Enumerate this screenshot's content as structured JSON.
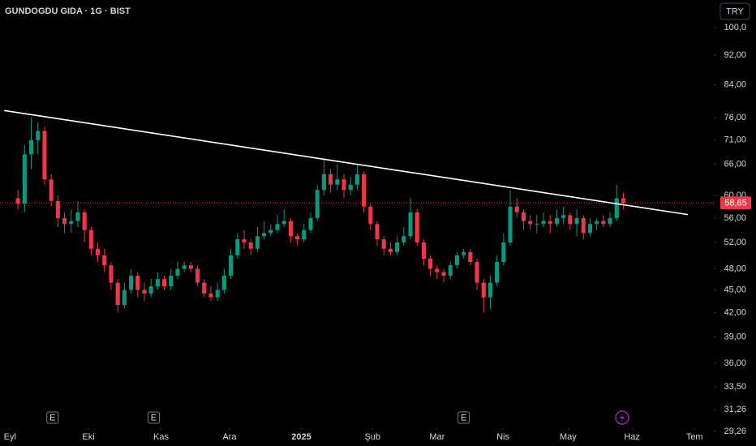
{
  "chart_data": {
    "type": "candlestick",
    "title": "GUNDOGDU GIDA · 1G · BIST",
    "currency": "TRY",
    "log_scale": true,
    "up_color": "#089981",
    "down_color": "#f23645",
    "grid": false,
    "x": [
      0,
      1,
      2,
      3,
      4,
      5,
      6,
      7,
      8,
      9,
      10,
      11,
      12,
      13,
      14,
      15,
      16,
      17,
      18,
      19,
      20,
      21,
      22,
      23,
      24,
      25,
      26,
      27,
      28,
      29,
      30,
      31,
      32,
      33,
      34,
      35,
      36,
      37,
      38,
      39,
      40,
      41,
      42,
      43,
      44,
      45,
      46,
      47,
      48,
      49,
      50,
      51,
      52,
      53,
      54,
      55,
      56,
      57,
      58,
      59,
      60,
      61,
      62,
      63,
      64,
      65,
      66,
      67,
      68,
      69,
      70,
      71,
      72,
      73,
      74,
      75,
      76,
      77,
      78,
      79,
      80,
      81,
      82,
      83,
      84,
      85,
      86,
      87,
      88,
      89,
      90,
      91
    ],
    "open": [
      59.5,
      58.5,
      68,
      71,
      73,
      63,
      59,
      56,
      55,
      55.5,
      57,
      54,
      51,
      50,
      48.5,
      46,
      43,
      45,
      47,
      45,
      44.5,
      45.5,
      46.5,
      45.5,
      47,
      48,
      48.5,
      48,
      46,
      44.5,
      44,
      45,
      47,
      50,
      52.5,
      52,
      51,
      53,
      53.5,
      54,
      55,
      55.5,
      53,
      52.5,
      54,
      56,
      61,
      64,
      62,
      63,
      61,
      62,
      64,
      58,
      55,
      52.5,
      51,
      50.5,
      52,
      53,
      57,
      52,
      49.5,
      48,
      47.5,
      47,
      48.5,
      50,
      50.5,
      49,
      46,
      44,
      46,
      49,
      52,
      58,
      57,
      55.5,
      55,
      55,
      55.5,
      55,
      56,
      56.5,
      55,
      56,
      53.5,
      55,
      55.5,
      55,
      56,
      59.5
    ],
    "high": [
      61,
      70,
      76,
      75,
      74,
      64,
      60,
      57,
      57.5,
      59,
      57.5,
      54.5,
      52,
      51,
      49,
      46.5,
      46,
      48,
      47.5,
      46,
      46.5,
      47.5,
      47,
      48,
      49,
      49,
      49,
      48.5,
      46.5,
      45.5,
      46,
      48,
      51,
      53.5,
      54,
      52.5,
      54.5,
      55.5,
      55,
      56.5,
      57.5,
      56,
      53.5,
      55,
      57,
      62,
      67,
      65,
      66,
      64,
      63.5,
      66,
      64.5,
      58.5,
      55.5,
      53,
      52,
      53,
      54.5,
      59.5,
      57.5,
      52.5,
      50,
      48.5,
      48,
      49,
      50.5,
      51,
      51,
      49.5,
      46.5,
      47,
      50,
      53.5,
      61,
      59.5,
      57.5,
      56.5,
      56.5,
      57,
      56.5,
      57.5,
      58,
      57,
      57.5,
      56.5,
      56,
      56,
      56.5,
      57,
      62,
      60.5
    ],
    "low": [
      57.5,
      57,
      65,
      68,
      62,
      58,
      54.5,
      53.5,
      53.5,
      54.5,
      52,
      50,
      49,
      47.5,
      45,
      42,
      42.5,
      44.5,
      44,
      43.5,
      44,
      45,
      45,
      45,
      46.5,
      47.5,
      47.5,
      45.5,
      44,
      43.5,
      43.5,
      44.5,
      46.5,
      49.5,
      51,
      50,
      50.5,
      52.5,
      53,
      53.5,
      54.5,
      52,
      51.5,
      52,
      53.5,
      55.5,
      60,
      60.5,
      61,
      59.5,
      60,
      61,
      57,
      54,
      51.5,
      50,
      50,
      50,
      51.5,
      52.5,
      51.5,
      48.5,
      47,
      46.5,
      46,
      46.5,
      48,
      49.5,
      48.5,
      45,
      42,
      42.5,
      45.5,
      48.5,
      51.5,
      56,
      54,
      54,
      53.5,
      54.5,
      53.5,
      54.5,
      55,
      54,
      53,
      52.5,
      53,
      54,
      54.5,
      54.5,
      55.5,
      57.5
    ],
    "close": [
      58.5,
      68,
      71,
      73,
      63,
      59,
      56,
      55,
      55.5,
      57,
      54,
      51,
      50,
      48.5,
      46,
      43,
      45,
      47,
      45,
      44.5,
      45.5,
      46.5,
      45.5,
      47,
      48,
      48.5,
      48,
      46,
      44.5,
      44,
      45,
      47,
      50,
      52.5,
      52,
      51,
      53,
      53.5,
      54,
      55,
      55.5,
      53,
      52.5,
      54,
      56,
      61,
      64,
      62,
      63,
      61,
      62,
      64,
      58,
      55,
      52.5,
      51,
      50.5,
      52,
      53,
      57,
      52,
      49.5,
      48,
      47.5,
      47,
      48.5,
      50,
      50.5,
      49,
      46,
      44,
      46,
      49,
      52,
      58,
      57,
      55.5,
      55,
      55,
      55.5,
      55,
      56,
      56.5,
      55,
      56,
      53.5,
      55,
      55.5,
      55,
      56,
      59.5,
      58.65
    ],
    "last_price": {
      "value": 58.65,
      "label": "58,65"
    },
    "trendline": {
      "x": [
        -2.07,
        100.7
      ],
      "y": [
        77.7,
        56.6
      ]
    },
    "events": [
      {
        "x": 5.2,
        "label": "E"
      },
      {
        "x": 20.4,
        "label": "E"
      },
      {
        "x": 67,
        "label": "E"
      }
    ],
    "xlim": [
      -2.7,
      104.6
    ],
    "xticks": [
      {
        "value": -1.2,
        "label": "Eyl"
      },
      {
        "value": 10.6,
        "label": "Eki"
      },
      {
        "value": 21.5,
        "label": "Kas"
      },
      {
        "value": 31.8,
        "label": "Ara"
      },
      {
        "value": 42.6,
        "label": "2025"
      },
      {
        "value": 53.3,
        "label": "Şub"
      },
      {
        "value": 63.0,
        "label": "Mar"
      },
      {
        "value": 72.9,
        "label": "Nis"
      },
      {
        "value": 82.7,
        "label": "May"
      },
      {
        "value": 92.3,
        "label": "Haz"
      },
      {
        "value": 101.7,
        "label": "Tem"
      }
    ],
    "ylim": [
      27.98,
      108.78
    ],
    "yticks": [
      {
        "value": 100,
        "label": "100,0"
      },
      {
        "value": 92,
        "label": "92,00"
      },
      {
        "value": 84,
        "label": "84,00"
      },
      {
        "value": 76,
        "label": "76,00"
      },
      {
        "value": 71,
        "label": "71,00"
      },
      {
        "value": 66,
        "label": "66,00"
      },
      {
        "value": 60,
        "label": "60,00"
      },
      {
        "value": 56,
        "label": "56,00"
      },
      {
        "value": 52,
        "label": "52,00"
      },
      {
        "value": 48,
        "label": "48,00"
      },
      {
        "value": 45,
        "label": "45,00"
      },
      {
        "value": 42,
        "label": "42,00"
      },
      {
        "value": 39,
        "label": "39,00"
      },
      {
        "value": 36,
        "label": "36,00"
      },
      {
        "value": 33.5,
        "label": "33,50"
      },
      {
        "value": 31.26,
        "label": "31,26"
      },
      {
        "value": 29.26,
        "label": "29,26"
      }
    ]
  }
}
